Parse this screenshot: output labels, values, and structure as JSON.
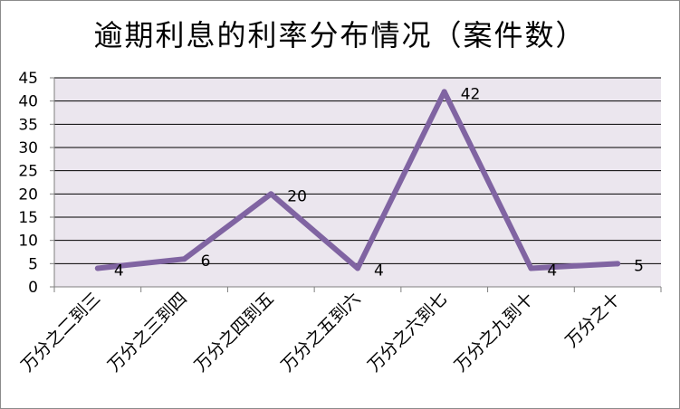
{
  "chart_data": {
    "type": "line",
    "title": "逾期利息的利率分布情况（案件数）",
    "categories": [
      "万分之二到三",
      "万分之三到四",
      "万分之四到五",
      "万分之五到六",
      "万分之六到七",
      "万分之九到十",
      "万分之十"
    ],
    "series": [
      {
        "values": [
          4,
          6,
          20,
          4,
          42,
          4,
          5
        ]
      }
    ],
    "yticks": [
      "0",
      "5",
      "10",
      "15",
      "20",
      "25",
      "30",
      "35",
      "40",
      "45"
    ],
    "ylim": [
      0,
      45
    ],
    "grid": true,
    "legend": "none",
    "colors": {
      "line": "#8064a2",
      "plot_bg": "#ebe6ee",
      "grid": "#000000"
    }
  }
}
